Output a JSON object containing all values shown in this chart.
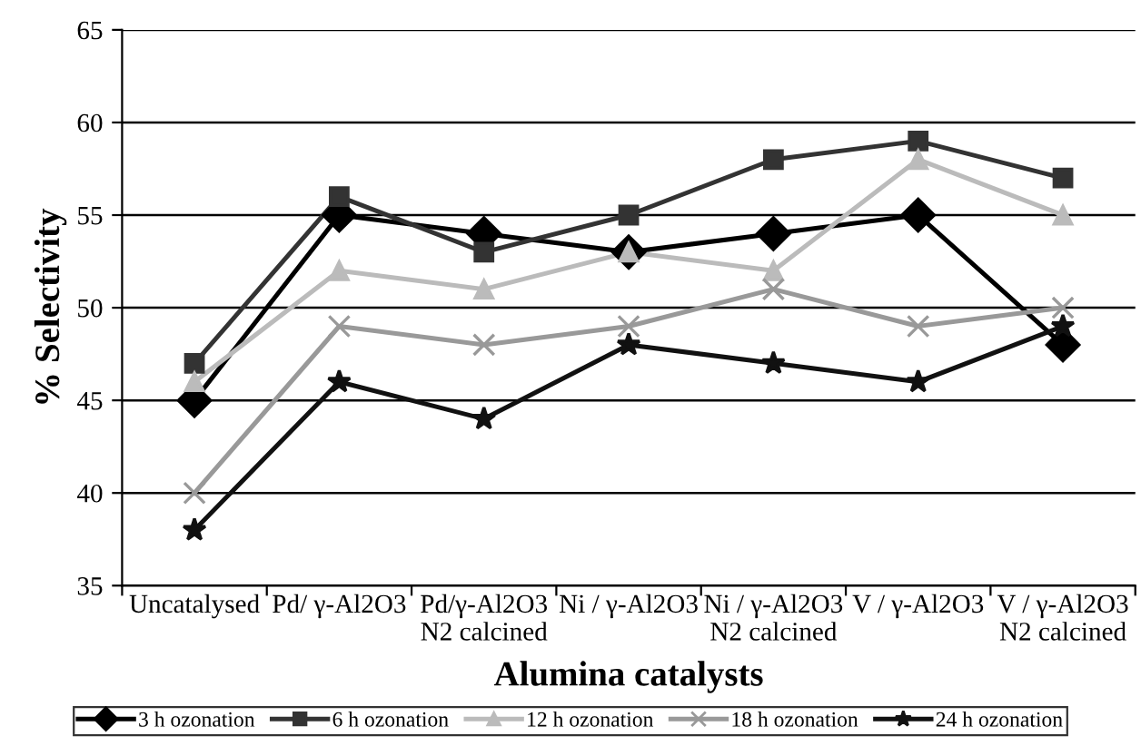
{
  "chart_data": {
    "type": "line",
    "xlabel": "Alumina catalysts",
    "ylabel": "% Selectivity",
    "categories": [
      "Uncatalysed",
      "Pd/ γ-Al2O3",
      "Pd/γ-Al2O3\nN2 calcined",
      "Ni / γ-Al2O3",
      "Ni / γ-Al2O3\nN2 calcined",
      "V / γ-Al2O3",
      "V / γ-Al2O3\nN2 calcined"
    ],
    "series": [
      {
        "name": "3 h ozonation",
        "color": "#000000",
        "marker": "diamond",
        "values": [
          45,
          55,
          54,
          53,
          54,
          55,
          48
        ]
      },
      {
        "name": "6 h ozonation",
        "color": "#333333",
        "marker": "square",
        "values": [
          47,
          56,
          53,
          55,
          58,
          59,
          57
        ]
      },
      {
        "name": "12 h ozonation",
        "color": "#bbbbbb",
        "marker": "triangle",
        "values": [
          46,
          52,
          51,
          53,
          52,
          58,
          55
        ]
      },
      {
        "name": "18 h ozonation",
        "color": "#999999",
        "marker": "cross",
        "values": [
          40,
          49,
          48,
          49,
          51,
          49,
          50
        ]
      },
      {
        "name": "24 h ozonation",
        "color": "#111111",
        "marker": "star",
        "values": [
          38,
          46,
          44,
          48,
          47,
          46,
          49
        ]
      }
    ],
    "ylim": [
      35,
      65
    ],
    "yticks": [
      35,
      40,
      45,
      50,
      55,
      60,
      65
    ],
    "grid": "y",
    "legend": "bottom",
    "line_style": "solid"
  }
}
